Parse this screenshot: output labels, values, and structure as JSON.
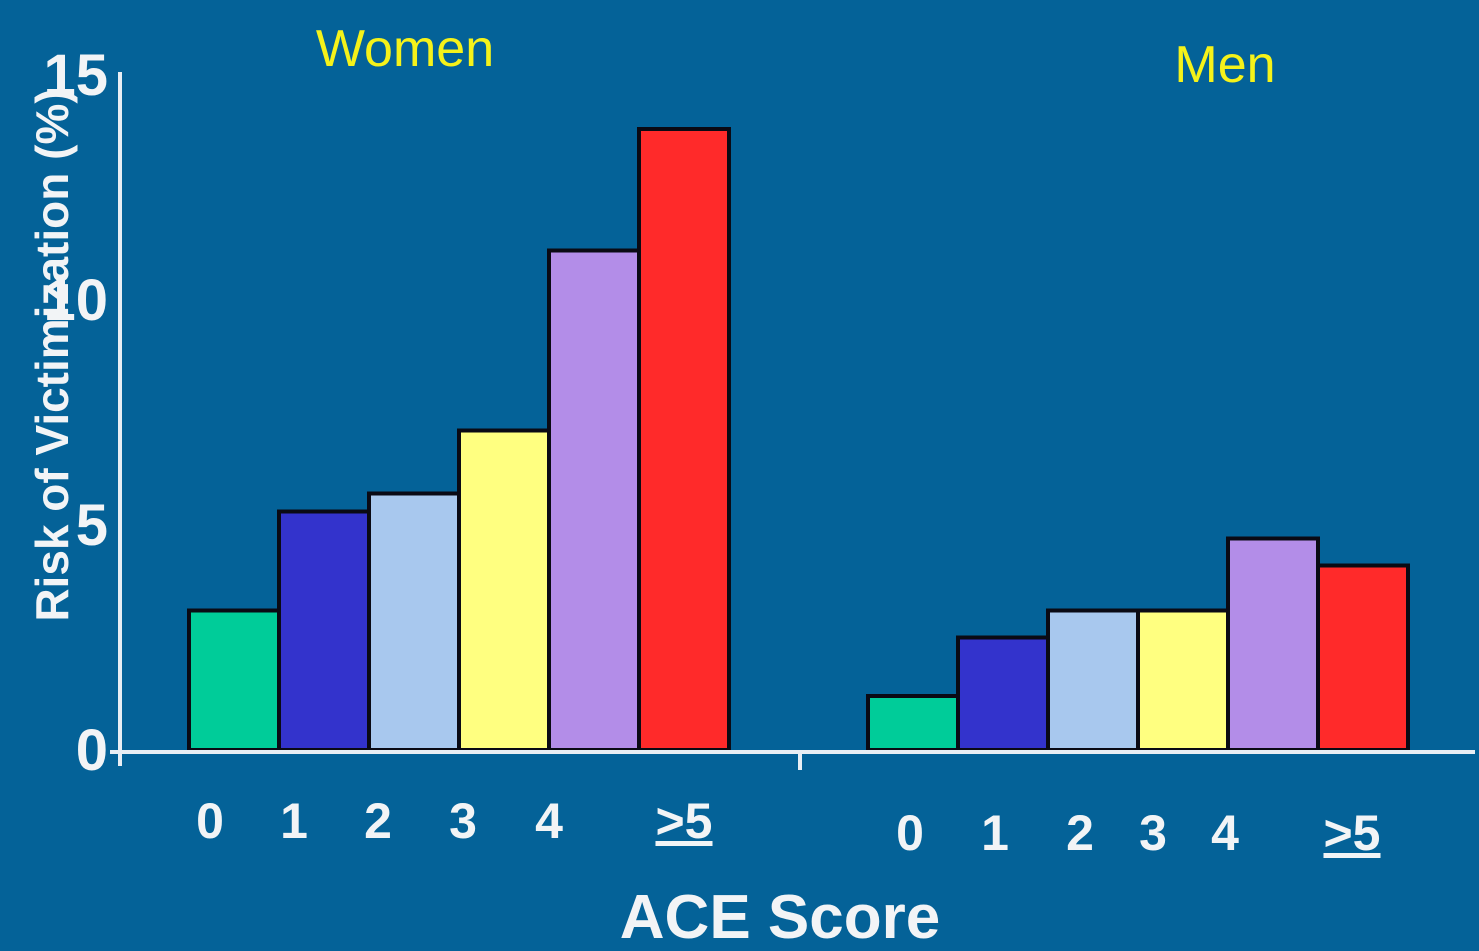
{
  "colors": {
    "background": "#046298",
    "axis": "#e8eef4",
    "panel_title": "#f5f21a",
    "text": "#f2f4f6"
  },
  "chart_data": [
    {
      "type": "bar",
      "title": "Women",
      "categories": [
        "0",
        "1",
        "2",
        "3",
        "4",
        ">5"
      ],
      "values": [
        3.1,
        5.3,
        5.7,
        7.1,
        11.1,
        13.8
      ],
      "bar_colors": [
        "#00cc99",
        "#3333cc",
        "#a8c8ee",
        "#ffff80",
        "#b38de8",
        "#ff2a2a"
      ]
    },
    {
      "type": "bar",
      "title": "Men",
      "categories": [
        "0",
        "1",
        "2",
        "3",
        "4",
        ">5"
      ],
      "values": [
        1.2,
        2.5,
        3.1,
        3.1,
        4.7,
        4.1
      ],
      "bar_colors": [
        "#00cc99",
        "#3333cc",
        "#a8c8ee",
        "#ffff80",
        "#b38de8",
        "#ff2a2a"
      ]
    }
  ],
  "axes": {
    "xlabel": "ACE Score",
    "ylabel": "Risk of Victimization (%)",
    "ylim": [
      0,
      15
    ],
    "yticks": [
      "0",
      "5",
      "10",
      "15"
    ],
    "grid": false
  }
}
